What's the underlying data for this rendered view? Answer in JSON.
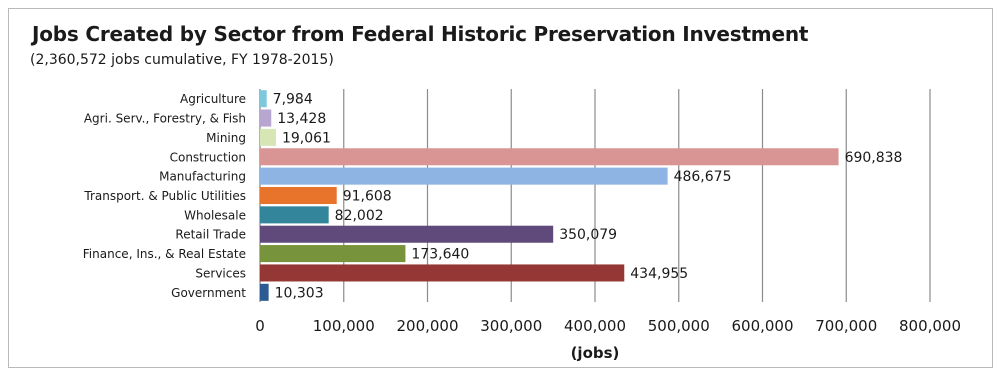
{
  "chart_data": {
    "type": "bar",
    "orientation": "horizontal",
    "title": "Jobs Created by Sector from Federal Historic Preservation Investment",
    "subtitle": "(2,360,572 jobs cumulative, FY 1978-2015)",
    "xlabel": "(jobs)",
    "ylabel": "",
    "xlim": [
      0,
      800000
    ],
    "x_ticks": [
      "0",
      "100,000",
      "200,000",
      "300,000",
      "400,000",
      "500,000",
      "600,000",
      "700,000",
      "800,000"
    ],
    "grid": "vertical",
    "categories": [
      "Agriculture",
      "Agri. Serv., Forestry, & Fish",
      "Mining",
      "Construction",
      "Manufacturing",
      "Transport. & Public Utilities",
      "Wholesale",
      "Retail Trade",
      "Finance, Ins., & Real Estate",
      "Services",
      "Government"
    ],
    "values": [
      7984,
      13428,
      19061,
      690838,
      486675,
      91608,
      82002,
      350079,
      173640,
      434955,
      10303
    ],
    "value_labels": [
      "7,984",
      "13,428",
      "19,061",
      "690,838",
      "486,675",
      "91,608",
      "82,002",
      "350,079",
      "173,640",
      "434,955",
      "10,303"
    ],
    "colors": [
      "#7ec8dc",
      "#b7a6cf",
      "#d7e6b5",
      "#d99594",
      "#8eb4e3",
      "#e8742b",
      "#33859c",
      "#604a7b",
      "#77933c",
      "#953735",
      "#2c5b93"
    ]
  }
}
